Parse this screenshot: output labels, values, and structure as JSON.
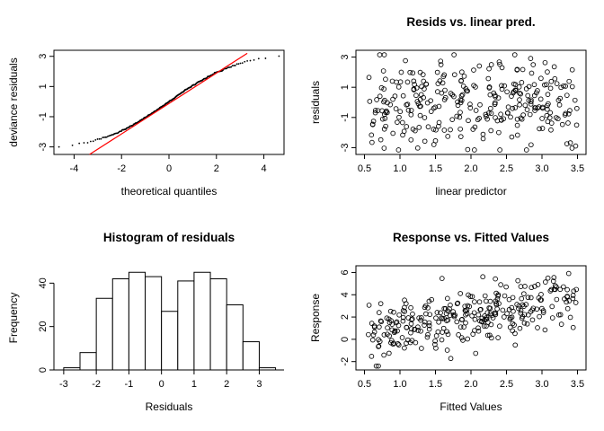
{
  "figure": {
    "background": "#ffffff",
    "layout": "2x2-grid",
    "description": "R model diagnostic plots"
  },
  "chart_data": [
    {
      "type": "scatter",
      "subtype": "qq-plot",
      "title": "",
      "xlabel": "theoretical quantiles",
      "ylabel": "deviance residuals",
      "xlim": [
        -4.85,
        4.85
      ],
      "ylim": [
        -3.5,
        3.4
      ],
      "xticks": [
        -4,
        -2,
        0,
        2,
        4
      ],
      "xtick_labels": [
        "-4",
        "-2",
        "0",
        "2",
        "4"
      ],
      "yticks": [
        -3,
        -1,
        1,
        3
      ],
      "ytick_labels": [
        "-3",
        "-1",
        "1",
        "3"
      ],
      "point_style": "dot",
      "n": 300,
      "generator": {
        "kind": "qq",
        "seed": 42,
        "theoretical_scale": 1.58,
        "scale": 3.3,
        "shape": 3.0,
        "jitter": 0.12
      },
      "ref_line": {
        "color": "#ff0000",
        "from": [
          -3.35,
          -3.5
        ],
        "to": [
          3.3,
          3.2
        ]
      }
    },
    {
      "type": "scatter",
      "title": "Resids vs. linear pred.",
      "xlabel": "linear predictor",
      "ylabel": "residuals",
      "xlim": [
        0.38,
        3.62
      ],
      "ylim": [
        -3.45,
        3.45
      ],
      "xticks": [
        0.5,
        1.0,
        1.5,
        2.0,
        2.5,
        3.0,
        3.5
      ],
      "xtick_labels": [
        "0.5",
        "1.0",
        "1.5",
        "2.0",
        "2.5",
        "3.0",
        "3.5"
      ],
      "yticks": [
        -3,
        -1,
        1,
        3
      ],
      "ytick_labels": [
        "-3",
        "-1",
        "1",
        "3"
      ],
      "point_style": "circle",
      "n": 300,
      "generator": {
        "kind": "uniform-normal",
        "seed": 101,
        "x_range": [
          0.55,
          3.5
        ],
        "mean": 0,
        "y_sd": 1.55,
        "y_clip": [
          -3.15,
          3.15
        ]
      }
    },
    {
      "type": "histogram",
      "title": "Histogram of residuals",
      "xlabel": "Residuals",
      "ylabel": "Frequency",
      "xlim": [
        -3.3,
        3.76
      ],
      "ylim": [
        0,
        48
      ],
      "xticks": [
        -3,
        -2,
        -1,
        0,
        1,
        2,
        3
      ],
      "xtick_labels": [
        "-3",
        "-2",
        "-1",
        "0",
        "1",
        "2",
        "3"
      ],
      "yticks": [
        0,
        20,
        40
      ],
      "ytick_labels": [
        "0",
        "20",
        "40"
      ],
      "breaks_start": -3,
      "bin_width": 0.5,
      "counts": [
        1,
        8,
        33,
        42,
        45,
        43,
        27,
        41,
        45,
        42,
        30,
        13,
        1
      ]
    },
    {
      "type": "scatter",
      "title": "Response vs. Fitted Values",
      "xlabel": "Fitted Values",
      "ylabel": "Response",
      "xlim": [
        0.38,
        3.62
      ],
      "ylim": [
        -2.75,
        6.6
      ],
      "xticks": [
        0.5,
        1.0,
        1.5,
        2.0,
        2.5,
        3.0,
        3.5
      ],
      "xtick_labels": [
        "0.5",
        "1.0",
        "1.5",
        "2.0",
        "2.5",
        "3.0",
        "3.5"
      ],
      "yticks": [
        -2,
        0,
        2,
        4,
        6
      ],
      "ytick_labels": [
        "-2",
        "0",
        "2",
        "4",
        "6"
      ],
      "point_style": "circle",
      "n": 300,
      "generator": {
        "kind": "linear-normal",
        "seed": 202,
        "x_range": [
          0.55,
          3.5
        ],
        "slope": 1.05,
        "intercept": 0.1,
        "y_sd": 1.3,
        "y_clip": [
          -2.4,
          6.2
        ]
      }
    }
  ]
}
